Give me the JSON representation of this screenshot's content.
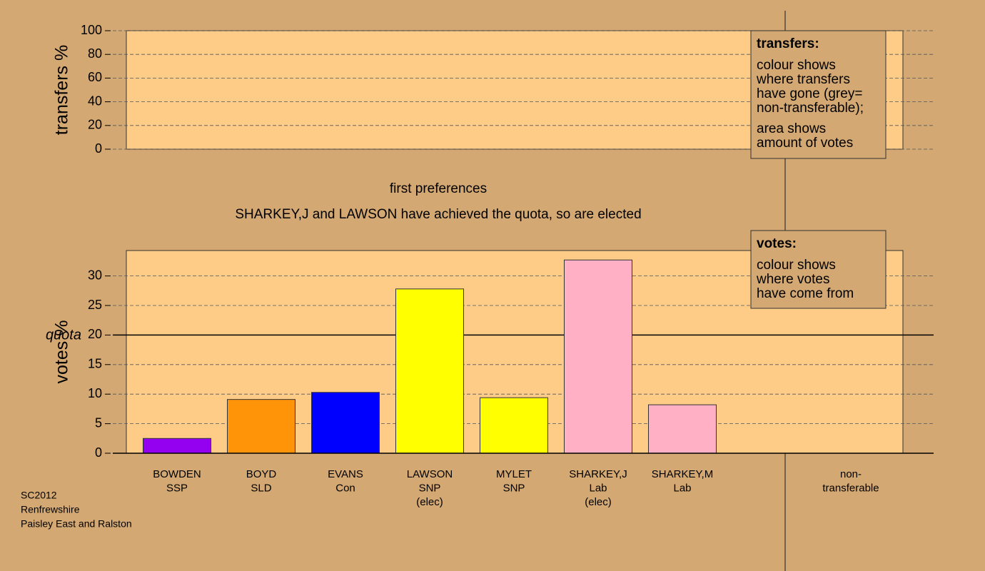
{
  "chart_data": [
    {
      "type": "bar",
      "ylabel": "transfers %",
      "ylim": [
        0,
        100
      ],
      "yticks": [
        0,
        20,
        40,
        60,
        80,
        100
      ],
      "grid": true,
      "legend_title": "transfers:",
      "legend_lines": [
        [
          "colour shows",
          "where transfers",
          "have gone (grey=",
          "non-transferable);"
        ],
        [
          "area shows",
          "amount of votes"
        ]
      ]
    },
    {
      "type": "bar",
      "title": "first preferences",
      "subtitle": "SHARKEY,J and LAWSON have achieved the quota, so are elected",
      "ylabel": "votes %",
      "ylim": [
        0,
        34.3
      ],
      "yticks": [
        0,
        5,
        10,
        15,
        20,
        25,
        30
      ],
      "grid": true,
      "quota": 20,
      "quota_label": "quota",
      "categories": [
        [
          "BOWDEN",
          "SSP"
        ],
        [
          "BOYD",
          "SLD"
        ],
        [
          "EVANS",
          "Con"
        ],
        [
          "LAWSON",
          "SNP",
          "(elec)"
        ],
        [
          "MYLET",
          "SNP"
        ],
        [
          "SHARKEY,J",
          "Lab",
          "(elec)"
        ],
        [
          "SHARKEY,M",
          "Lab"
        ],
        null,
        [
          "non-",
          "transferable"
        ]
      ],
      "values": [
        2.5,
        9.1,
        10.3,
        27.8,
        9.4,
        32.7,
        8.2,
        null,
        null
      ],
      "colors": [
        "#9400f0",
        "#ff9408",
        "#0000ff",
        "#ffff00",
        "#ffff00",
        "#ffb0c4",
        "#ffb0c4",
        null,
        null
      ],
      "legend_title": "votes:",
      "legend_lines": [
        [
          "colour shows",
          "where votes",
          "have come from"
        ]
      ]
    }
  ],
  "footer": [
    "SC2012",
    "Renfrewshire",
    "Paisley East and Ralston"
  ]
}
